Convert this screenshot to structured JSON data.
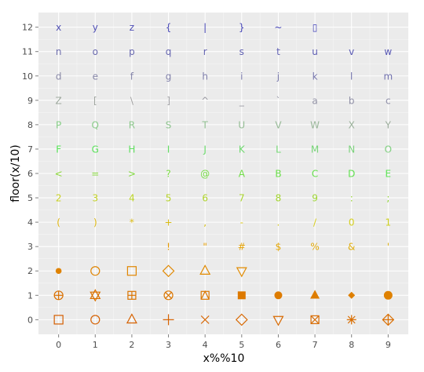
{
  "chart_data": {
    "type": "scatter",
    "title": "",
    "xlabel": "x%%10",
    "ylabel": "floor(x/10)",
    "xlim": [
      -0.55,
      9.55
    ],
    "ylim": [
      -0.6,
      12.6
    ],
    "x_ticks": [
      "0",
      "1",
      "2",
      "3",
      "4",
      "5",
      "6",
      "7",
      "8",
      "9"
    ],
    "y_ticks": [
      "0",
      "1",
      "2",
      "3",
      "4",
      "5",
      "6",
      "7",
      "8",
      "9",
      "10",
      "11",
      "12"
    ],
    "grid": true,
    "legend": "none",
    "panel_background": "#ebebeb",
    "grid_color": "#ffffff",
    "color_scale": {
      "low": "#d55e00",
      "mid": "#ffff33",
      "high_green": "#56e456",
      "high": "#3f3fb8",
      "range": [
        0,
        127
      ]
    },
    "points": {
      "description": "Point x,y for values 0..127 where value = 10*y + x; marker is R pch symbol for 0..25 and ASCII character for 33..127",
      "symbols": [
        {
          "x": 0,
          "y": 0,
          "value": 0,
          "pch": "open-square"
        },
        {
          "x": 1,
          "y": 0,
          "value": 1,
          "pch": "open-circle"
        },
        {
          "x": 2,
          "y": 0,
          "value": 2,
          "pch": "open-triangle-up"
        },
        {
          "x": 3,
          "y": 0,
          "value": 3,
          "pch": "plus"
        },
        {
          "x": 4,
          "y": 0,
          "value": 4,
          "pch": "cross"
        },
        {
          "x": 5,
          "y": 0,
          "value": 5,
          "pch": "open-diamond"
        },
        {
          "x": 6,
          "y": 0,
          "value": 6,
          "pch": "open-triangle-down"
        },
        {
          "x": 7,
          "y": 0,
          "value": 7,
          "pch": "square-cross"
        },
        {
          "x": 8,
          "y": 0,
          "value": 8,
          "pch": "asterisk"
        },
        {
          "x": 9,
          "y": 0,
          "value": 9,
          "pch": "diamond-plus"
        },
        {
          "x": 0,
          "y": 1,
          "value": 10,
          "pch": "circle-plus"
        },
        {
          "x": 1,
          "y": 1,
          "value": 11,
          "pch": "star-of-david"
        },
        {
          "x": 2,
          "y": 1,
          "value": 12,
          "pch": "square-plus"
        },
        {
          "x": 3,
          "y": 1,
          "value": 13,
          "pch": "circle-cross"
        },
        {
          "x": 4,
          "y": 1,
          "value": 14,
          "pch": "square-triangle"
        },
        {
          "x": 5,
          "y": 1,
          "value": 15,
          "pch": "filled-square"
        },
        {
          "x": 6,
          "y": 1,
          "value": 16,
          "pch": "filled-circle"
        },
        {
          "x": 7,
          "y": 1,
          "value": 17,
          "pch": "filled-triangle"
        },
        {
          "x": 8,
          "y": 1,
          "value": 18,
          "pch": "filled-diamond-small"
        },
        {
          "x": 9,
          "y": 1,
          "value": 19,
          "pch": "filled-circle-large"
        },
        {
          "x": 0,
          "y": 2,
          "value": 20,
          "pch": "filled-circle-small"
        },
        {
          "x": 1,
          "y": 2,
          "value": 21,
          "pch": "open-circle"
        },
        {
          "x": 2,
          "y": 2,
          "value": 22,
          "pch": "open-square"
        },
        {
          "x": 3,
          "y": 2,
          "value": 23,
          "pch": "open-diamond"
        },
        {
          "x": 4,
          "y": 2,
          "value": 24,
          "pch": "open-triangle-up"
        },
        {
          "x": 5,
          "y": 2,
          "value": 25,
          "pch": "open-triangle-down"
        }
      ],
      "characters": [
        {
          "x": 3,
          "y": 3,
          "ch": "!"
        },
        {
          "x": 4,
          "y": 3,
          "ch": "\""
        },
        {
          "x": 5,
          "y": 3,
          "ch": "#"
        },
        {
          "x": 6,
          "y": 3,
          "ch": "$"
        },
        {
          "x": 7,
          "y": 3,
          "ch": "%"
        },
        {
          "x": 8,
          "y": 3,
          "ch": "&"
        },
        {
          "x": 9,
          "y": 3,
          "ch": "'"
        },
        {
          "x": 0,
          "y": 4,
          "ch": "("
        },
        {
          "x": 1,
          "y": 4,
          "ch": ")"
        },
        {
          "x": 2,
          "y": 4,
          "ch": "*"
        },
        {
          "x": 3,
          "y": 4,
          "ch": "+"
        },
        {
          "x": 4,
          "y": 4,
          "ch": ","
        },
        {
          "x": 5,
          "y": 4,
          "ch": "-"
        },
        {
          "x": 6,
          "y": 4,
          "ch": "."
        },
        {
          "x": 7,
          "y": 4,
          "ch": "/"
        },
        {
          "x": 8,
          "y": 4,
          "ch": "0"
        },
        {
          "x": 9,
          "y": 4,
          "ch": "1"
        },
        {
          "x": 0,
          "y": 5,
          "ch": "2"
        },
        {
          "x": 1,
          "y": 5,
          "ch": "3"
        },
        {
          "x": 2,
          "y": 5,
          "ch": "4"
        },
        {
          "x": 3,
          "y": 5,
          "ch": "5"
        },
        {
          "x": 4,
          "y": 5,
          "ch": "6"
        },
        {
          "x": 5,
          "y": 5,
          "ch": "7"
        },
        {
          "x": 6,
          "y": 5,
          "ch": "8"
        },
        {
          "x": 7,
          "y": 5,
          "ch": "9"
        },
        {
          "x": 8,
          "y": 5,
          "ch": ":"
        },
        {
          "x": 9,
          "y": 5,
          "ch": ";"
        },
        {
          "x": 0,
          "y": 6,
          "ch": "<"
        },
        {
          "x": 1,
          "y": 6,
          "ch": "="
        },
        {
          "x": 2,
          "y": 6,
          "ch": ">"
        },
        {
          "x": 3,
          "y": 6,
          "ch": "?"
        },
        {
          "x": 4,
          "y": 6,
          "ch": "@"
        },
        {
          "x": 5,
          "y": 6,
          "ch": "A"
        },
        {
          "x": 6,
          "y": 6,
          "ch": "B"
        },
        {
          "x": 7,
          "y": 6,
          "ch": "C"
        },
        {
          "x": 8,
          "y": 6,
          "ch": "D"
        },
        {
          "x": 9,
          "y": 6,
          "ch": "E"
        },
        {
          "x": 0,
          "y": 7,
          "ch": "F"
        },
        {
          "x": 1,
          "y": 7,
          "ch": "G"
        },
        {
          "x": 2,
          "y": 7,
          "ch": "H"
        },
        {
          "x": 3,
          "y": 7,
          "ch": "I"
        },
        {
          "x": 4,
          "y": 7,
          "ch": "J"
        },
        {
          "x": 5,
          "y": 7,
          "ch": "K"
        },
        {
          "x": 6,
          "y": 7,
          "ch": "L"
        },
        {
          "x": 7,
          "y": 7,
          "ch": "M"
        },
        {
          "x": 8,
          "y": 7,
          "ch": "N"
        },
        {
          "x": 9,
          "y": 7,
          "ch": "O"
        },
        {
          "x": 0,
          "y": 8,
          "ch": "P"
        },
        {
          "x": 1,
          "y": 8,
          "ch": "Q"
        },
        {
          "x": 2,
          "y": 8,
          "ch": "R"
        },
        {
          "x": 3,
          "y": 8,
          "ch": "S"
        },
        {
          "x": 4,
          "y": 8,
          "ch": "T"
        },
        {
          "x": 5,
          "y": 8,
          "ch": "U"
        },
        {
          "x": 6,
          "y": 8,
          "ch": "V"
        },
        {
          "x": 7,
          "y": 8,
          "ch": "W"
        },
        {
          "x": 8,
          "y": 8,
          "ch": "X"
        },
        {
          "x": 9,
          "y": 8,
          "ch": "Y"
        },
        {
          "x": 0,
          "y": 9,
          "ch": "Z"
        },
        {
          "x": 1,
          "y": 9,
          "ch": "["
        },
        {
          "x": 2,
          "y": 9,
          "ch": "\\"
        },
        {
          "x": 3,
          "y": 9,
          "ch": "]"
        },
        {
          "x": 4,
          "y": 9,
          "ch": "^"
        },
        {
          "x": 5,
          "y": 9,
          "ch": "_"
        },
        {
          "x": 6,
          "y": 9,
          "ch": "`"
        },
        {
          "x": 7,
          "y": 9,
          "ch": "a"
        },
        {
          "x": 8,
          "y": 9,
          "ch": "b"
        },
        {
          "x": 9,
          "y": 9,
          "ch": "c"
        },
        {
          "x": 0,
          "y": 10,
          "ch": "d"
        },
        {
          "x": 1,
          "y": 10,
          "ch": "e"
        },
        {
          "x": 2,
          "y": 10,
          "ch": "f"
        },
        {
          "x": 3,
          "y": 10,
          "ch": "g"
        },
        {
          "x": 4,
          "y": 10,
          "ch": "h"
        },
        {
          "x": 5,
          "y": 10,
          "ch": "i"
        },
        {
          "x": 6,
          "y": 10,
          "ch": "j"
        },
        {
          "x": 7,
          "y": 10,
          "ch": "k"
        },
        {
          "x": 8,
          "y": 10,
          "ch": "l"
        },
        {
          "x": 9,
          "y": 10,
          "ch": "m"
        },
        {
          "x": 0,
          "y": 11,
          "ch": "n"
        },
        {
          "x": 1,
          "y": 11,
          "ch": "o"
        },
        {
          "x": 2,
          "y": 11,
          "ch": "p"
        },
        {
          "x": 3,
          "y": 11,
          "ch": "q"
        },
        {
          "x": 4,
          "y": 11,
          "ch": "r"
        },
        {
          "x": 5,
          "y": 11,
          "ch": "s"
        },
        {
          "x": 6,
          "y": 11,
          "ch": "t"
        },
        {
          "x": 7,
          "y": 11,
          "ch": "u"
        },
        {
          "x": 8,
          "y": 11,
          "ch": "v"
        },
        {
          "x": 9,
          "y": 11,
          "ch": "w"
        },
        {
          "x": 0,
          "y": 12,
          "ch": "x"
        },
        {
          "x": 1,
          "y": 12,
          "ch": "y"
        },
        {
          "x": 2,
          "y": 12,
          "ch": "z"
        },
        {
          "x": 3,
          "y": 12,
          "ch": "{"
        },
        {
          "x": 4,
          "y": 12,
          "ch": "|"
        },
        {
          "x": 5,
          "y": 12,
          "ch": "}"
        },
        {
          "x": 6,
          "y": 12,
          "ch": "~"
        },
        {
          "x": 7,
          "y": 12,
          "ch": "▯"
        }
      ]
    }
  }
}
